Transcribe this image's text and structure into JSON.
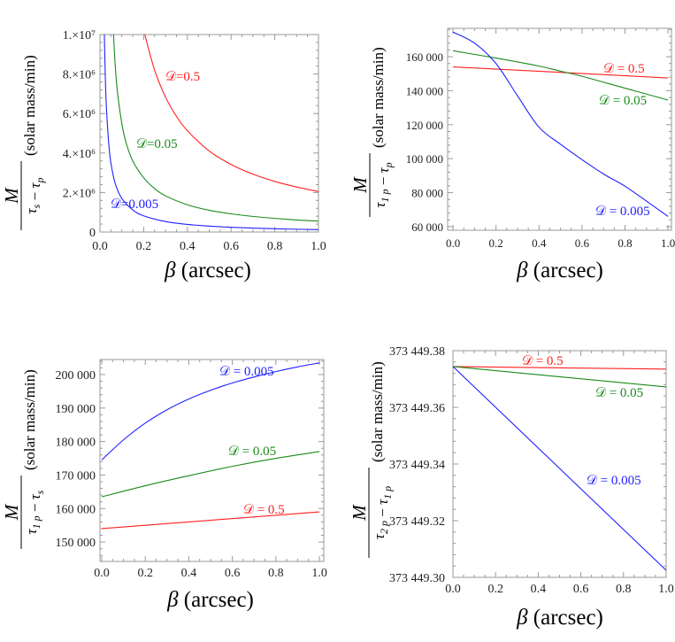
{
  "chart_data": [
    {
      "type": "line",
      "xlabel": "β (arcsec)",
      "ylabel": {
        "numerator": "M",
        "denominator": [
          [
            "τ",
            "s"
          ],
          [
            "τ",
            "p"
          ]
        ],
        "unit": "(solar mass/min)"
      },
      "xlim": [
        0,
        1
      ],
      "ylim": [
        0,
        10000000
      ],
      "xticks": [
        0,
        0.2,
        0.4,
        0.6,
        0.8,
        1.0
      ],
      "xtick_labels": [
        "0.0",
        "0.2",
        "0.4",
        "0.6",
        "0.8",
        "1.0"
      ],
      "yticks": [
        0,
        2000000,
        4000000,
        6000000,
        8000000,
        10000000
      ],
      "ytick_labels": [
        "0",
        "2.×10⁶",
        "4.×10⁶",
        "6.×10⁶",
        "8.×10⁶",
        "1.×10⁷"
      ],
      "grid": false,
      "series": [
        {
          "name": "𝒟=0.5",
          "color": "#ff2020",
          "x": [
            0.205,
            0.25,
            0.3,
            0.35,
            0.4,
            0.5,
            0.6,
            0.7,
            0.8,
            0.9,
            1.0
          ],
          "y": [
            10000000,
            8200000,
            6830000,
            5860000,
            5130000,
            4100000,
            3420000,
            2930000,
            2560000,
            2280000,
            2050000
          ]
        },
        {
          "name": "𝒟=0.05",
          "color": "#1a8a1a",
          "x": [
            0.062,
            0.07,
            0.08,
            0.1,
            0.12,
            0.15,
            0.2,
            0.25,
            0.3,
            0.4,
            0.5,
            0.6,
            0.7,
            0.8,
            0.9,
            1.0
          ],
          "y": [
            10000000,
            8400000,
            7100000,
            5500000,
            4500000,
            3600000,
            2750000,
            2200000,
            1830000,
            1380000,
            1100000,
            920000,
            790000,
            690000,
            610000,
            550000
          ]
        },
        {
          "name": "𝒟=0.005",
          "color": "#2020ff",
          "x": [
            0.02,
            0.025,
            0.03,
            0.04,
            0.05,
            0.07,
            0.1,
            0.15,
            0.2,
            0.3,
            0.4,
            0.5,
            0.6,
            0.8,
            1.0
          ],
          "y": [
            10000000,
            7600000,
            6200000,
            4500000,
            3500000,
            2450000,
            1700000,
            1120000,
            820000,
            530000,
            385000,
            300000,
            240000,
            165000,
            120000
          ]
        }
      ]
    },
    {
      "type": "line",
      "xlabel": "β (arcsec)",
      "ylabel": {
        "numerator": "M",
        "denominator": [
          [
            "τ",
            "1 p"
          ],
          [
            "τ",
            "p"
          ]
        ],
        "unit": "(solar mass/min)"
      },
      "xlim": [
        -0.025,
        1.016
      ],
      "ylim": [
        57900,
        176700
      ],
      "xticks": [
        0,
        0.2,
        0.4,
        0.6,
        0.8,
        1.0
      ],
      "xtick_labels": [
        "0.0",
        "0.2",
        "0.4",
        "0.6",
        "0.8",
        "1.0"
      ],
      "yticks": [
        60000,
        80000,
        100000,
        120000,
        140000,
        160000
      ],
      "ytick_labels": [
        "60 000",
        "80 000",
        "100 000",
        "120 000",
        "140 000",
        "160 000"
      ],
      "grid": false,
      "series": [
        {
          "name": "𝒟 = 0.5",
          "color": "#ff2020",
          "x": [
            0,
            0.5,
            1.0
          ],
          "y": [
            154000,
            150800,
            147500
          ]
        },
        {
          "name": "𝒟 = 0.05",
          "color": "#1a8a1a",
          "x": [
            0,
            0.2,
            0.4,
            0.5,
            0.6,
            0.8,
            1.0
          ],
          "y": [
            163500,
            159200,
            154500,
            151500,
            148500,
            141500,
            134500
          ]
        },
        {
          "name": "𝒟 = 0.005",
          "color": "#2020ff",
          "x": [
            0,
            0.1,
            0.2,
            0.3,
            0.4,
            0.5,
            0.6,
            0.7,
            0.8,
            0.9,
            1.0
          ],
          "y": [
            174500,
            168000,
            156000,
            137000,
            118500,
            108500,
            99400,
            91000,
            83800,
            75000,
            66000
          ]
        }
      ]
    },
    {
      "type": "line",
      "xlabel": "β (arcsec)",
      "ylabel": {
        "numerator": "M",
        "denominator": [
          [
            "τ",
            "1 p"
          ],
          [
            "τ",
            "s"
          ]
        ],
        "unit": "(solar mass/min)"
      },
      "xlim": [
        -0.008,
        1.02
      ],
      "ylim": [
        144200,
        204500
      ],
      "xticks": [
        0,
        0.2,
        0.4,
        0.6,
        0.8,
        1.0
      ],
      "xtick_labels": [
        "0.0",
        "0.2",
        "0.4",
        "0.6",
        "0.8",
        "1.0"
      ],
      "yticks": [
        150000,
        160000,
        170000,
        180000,
        190000,
        200000
      ],
      "ytick_labels": [
        "150 000",
        "160 000",
        "170 000",
        "180 000",
        "190 000",
        "200 000"
      ],
      "grid": false,
      "series": [
        {
          "name": "𝒟 = 0.005",
          "color": "#2020ff",
          "x": [
            0,
            0.1,
            0.2,
            0.3,
            0.4,
            0.5,
            0.6,
            0.7,
            0.8,
            0.9,
            1.0
          ],
          "y": [
            174500,
            180500,
            185500,
            189500,
            192700,
            195300,
            197500,
            199300,
            200900,
            202300,
            203500
          ]
        },
        {
          "name": "𝒟 = 0.05",
          "color": "#1a8a1a",
          "x": [
            0,
            0.2,
            0.4,
            0.6,
            0.8,
            1.0
          ],
          "y": [
            163500,
            166800,
            169800,
            172600,
            175000,
            177000
          ]
        },
        {
          "name": "𝒟 = 0.5",
          "color": "#ff2020",
          "x": [
            0,
            1.0
          ],
          "y": [
            154000,
            159000
          ]
        }
      ]
    },
    {
      "type": "line",
      "xlabel": "β (arcsec)",
      "ylabel": {
        "numerator": "M",
        "denominator": [
          [
            "τ",
            "2 p"
          ],
          [
            "τ",
            "1 p"
          ]
        ],
        "unit": "(solar mass/min)"
      },
      "xlim": [
        0,
        1
      ],
      "ylim": [
        373449.3,
        373449.38
      ],
      "xticks": [
        0,
        0.2,
        0.4,
        0.6,
        0.8,
        1.0
      ],
      "xtick_labels": [
        "0.0",
        "0.2",
        "0.4",
        "0.6",
        "0.8",
        "1.0"
      ],
      "yticks": [
        373449.3,
        373449.32,
        373449.34,
        373449.36,
        373449.38
      ],
      "ytick_labels": [
        "373 449.30",
        "373 449.32",
        "373 449.34",
        "373 449.36",
        "373 449.38"
      ],
      "grid": false,
      "series": [
        {
          "name": "𝒟 = 0.5",
          "color": "#ff2020",
          "x": [
            0,
            1.0
          ],
          "y": [
            373449.3744,
            373449.3735
          ]
        },
        {
          "name": "𝒟 = 0.05",
          "color": "#1a8a1a",
          "x": [
            0,
            1.0
          ],
          "y": [
            373449.3744,
            373449.3672
          ]
        },
        {
          "name": "𝒟 = 0.005",
          "color": "#2020ff",
          "x": [
            0,
            1.0
          ],
          "y": [
            373449.3744,
            373449.3025
          ]
        }
      ]
    }
  ]
}
